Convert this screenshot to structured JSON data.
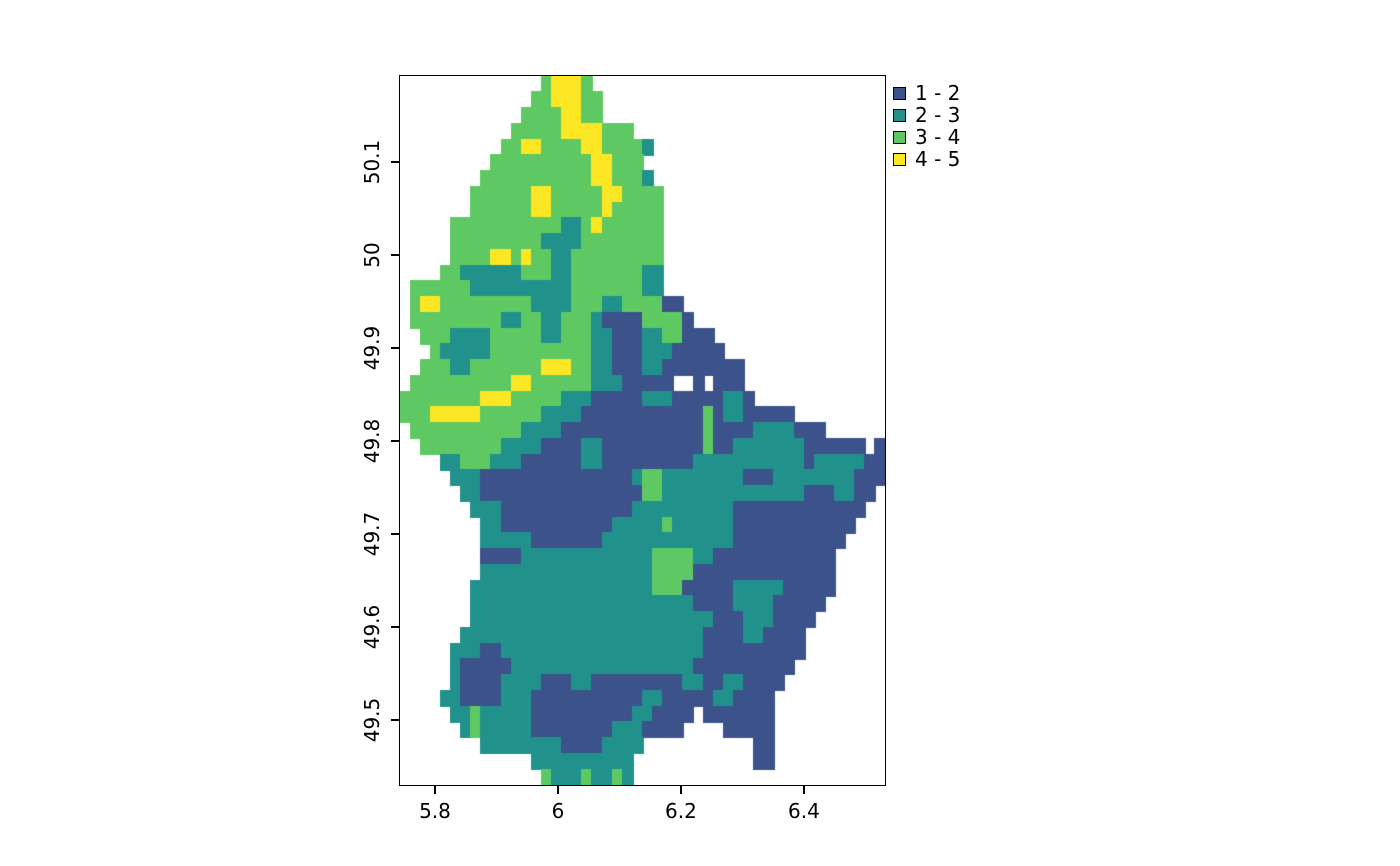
{
  "page": {
    "background": "#ffffff",
    "text_color": "#000000"
  },
  "chart_data": {
    "type": "heatmap",
    "title": "",
    "xlabel": "",
    "ylabel": "",
    "grid_lines": "off",
    "frame_color": "#000000",
    "x_axis": {
      "range": [
        5.7415,
        6.5335
      ],
      "ticks": [
        {
          "label": "5.8",
          "value": 5.8
        },
        {
          "label": "6",
          "value": 6.0
        },
        {
          "label": "6.2",
          "value": 6.2
        },
        {
          "label": "6.4",
          "value": 6.4
        }
      ]
    },
    "y_axis": {
      "range": [
        49.429,
        50.194
      ],
      "ticks": [
        {
          "label": "50.1",
          "value": 50.1
        },
        {
          "label": "50",
          "value": 50.0
        },
        {
          "label": "49.9",
          "value": 49.9
        },
        {
          "label": "49.8",
          "value": 49.8
        },
        {
          "label": "49.7",
          "value": 49.7
        },
        {
          "label": "49.6",
          "value": 49.6
        },
        {
          "label": "49.5",
          "value": 49.5
        }
      ]
    },
    "legend": {
      "position": "top-right",
      "items": [
        {
          "label": "1 - 2",
          "class": "1",
          "color": "#3b528b"
        },
        {
          "label": "2 - 3",
          "class": "2",
          "color": "#21918c"
        },
        {
          "label": "3 - 4",
          "class": "3",
          "color": "#5ec962"
        },
        {
          "label": "4 - 5",
          "class": "4",
          "color": "#fde725"
        }
      ]
    },
    "grid": {
      "cols": 48,
      "rows_count": 45,
      "class_colors": {
        "1": "#3b528b",
        "2": "#21918c",
        "3": "#5ec962",
        "4": "#fde725"
      },
      "rows": [
        "..............34443.............................",
        ".............3344433............................",
        "............33334433............................",
        "...........333334444333.........................",
        "..........334433334433332.......................",
        ".........333333333344333........................",
        "........33333333333443332.......................",
        ".......3333334433333443333......................",
        ".......3333334433333433333......................",
        ".....333333333332234333333......................",
        ".....333333333222233333333......................",
        ".....333344343322333333333......................",
        "....3322222233322333333322......................",
        ".3333332222222222333333322......................",
        ".344333333333222233322333311....................",
        ".3333333332233223332111133331...................",
        "..33322223333322333221112233111.................",
        "...32222233333333332211122211111................",
        "..33322333333344433221112211111111..............",
        ".33333333334433333322211111..1.111..............",
        "33333333444333332221111122211111221.............",
        "333444443333332222111111111111312211111.........",
        ".33333333333222211111111111111311112222111......",
        "..33333333222211112211111111113112222222111111.1",
        "....22333222111111221111111112222222222212222211",
        ".....2221111111111111112332222222211122222222111",
        "......22111111111111111133222222222222221112211.",
        ".......222111111111111122222222221111111111111..",
        "........2211111111111222223222222111111111111...",
        "........222221111111222222222222211111111111....",
        "........11112222222222222333322111111111111.....",
        "........22222222222222222333311111111111111.....",
        ".......222222222222222222333111112222211111.....",
        ".......22222222222222222222221111222211111......",
        ".......2222222222222222222222221112221111.......",
        "......2222222222222222222222221111221111........",
        ".....22211222222222222222222221111111111........",
        ".....2111112222222222222222221111111111.........",
        ".....211112222111221111111112211221111..........",
        "....221111222111111111112211111221111...........",
        ".....223222221111111111221111.1111111...........",
        "......2322222111111112221111....11111...........",
        "........2222222211112222...........11...........",
        ".............2222222222............11...........",
        "..............322232232........................."
      ]
    }
  }
}
